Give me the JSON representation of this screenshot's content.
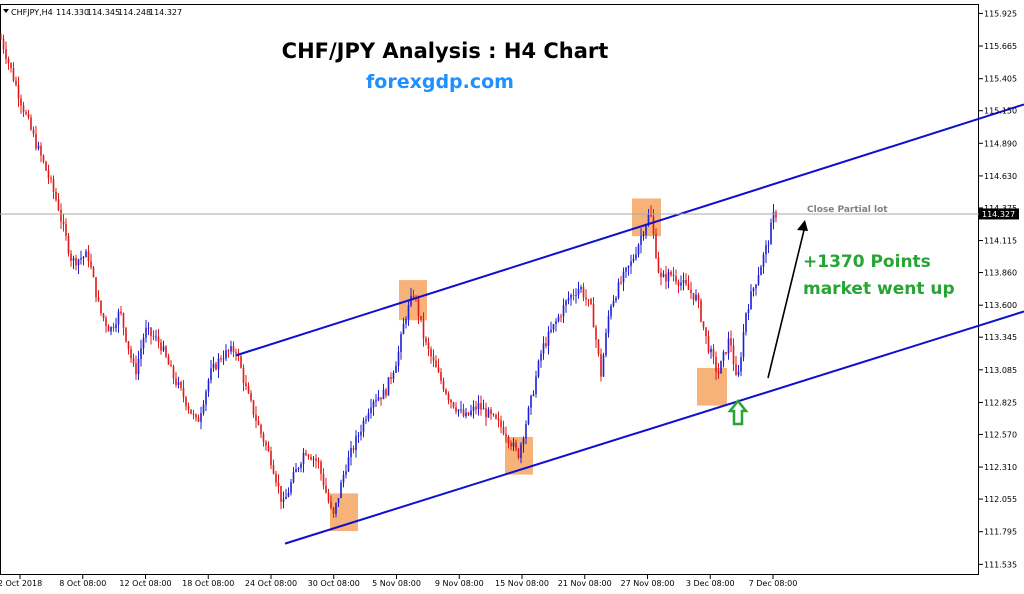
{
  "symbol_info": {
    "symbol": "CHFJPY,H4",
    "open": "114.330",
    "high": "114.345",
    "low": "114.248",
    "close": "114.327"
  },
  "current_price": "114.327",
  "chart_data": {
    "type": "candlestick",
    "title": "CHF/JPY Analysis : H4 Chart",
    "subtitle": "forexgdp.com",
    "ylim": [
      111.45,
      116.0
    ],
    "y_ticks": [
      "115.925",
      "115.665",
      "115.405",
      "115.150",
      "114.890",
      "114.630",
      "114.375",
      "114.115",
      "113.860",
      "113.600",
      "113.345",
      "113.085",
      "112.825",
      "112.570",
      "112.310",
      "112.055",
      "111.795",
      "111.535"
    ],
    "x_ticks": [
      "2 Oct 2018",
      "8 Oct 08:00",
      "12 Oct 08:00",
      "18 Oct 08:00",
      "24 Oct 08:00",
      "30 Oct 08:00",
      "5 Nov 08:00",
      "9 Nov 08:00",
      "15 Nov 08:00",
      "21 Nov 08:00",
      "27 Nov 08:00",
      "3 Dec 08:00",
      "7 Dec 08:00"
    ],
    "path_close": [
      [
        0,
        115.75
      ],
      [
        12,
        115.45
      ],
      [
        22,
        115.2
      ],
      [
        33,
        114.95
      ],
      [
        45,
        114.7
      ],
      [
        58,
        114.4
      ],
      [
        62,
        114.25
      ],
      [
        72,
        113.95
      ],
      [
        88,
        114.0
      ],
      [
        100,
        113.55
      ],
      [
        110,
        113.4
      ],
      [
        120,
        113.55
      ],
      [
        135,
        113.05
      ],
      [
        145,
        113.4
      ],
      [
        160,
        113.3
      ],
      [
        172,
        113.05
      ],
      [
        185,
        112.85
      ],
      [
        197,
        112.65
      ],
      [
        210,
        113.05
      ],
      [
        222,
        113.2
      ],
      [
        236,
        113.25
      ],
      [
        247,
        112.9
      ],
      [
        260,
        112.6
      ],
      [
        272,
        112.35
      ],
      [
        283,
        112.0
      ],
      [
        292,
        112.2
      ],
      [
        305,
        112.45
      ],
      [
        318,
        112.35
      ],
      [
        333,
        111.9
      ],
      [
        345,
        112.3
      ],
      [
        360,
        112.6
      ],
      [
        372,
        112.85
      ],
      [
        385,
        112.9
      ],
      [
        398,
        113.2
      ],
      [
        405,
        113.5
      ],
      [
        414,
        113.7
      ],
      [
        425,
        113.3
      ],
      [
        438,
        113.05
      ],
      [
        450,
        112.85
      ],
      [
        465,
        112.7
      ],
      [
        478,
        112.8
      ],
      [
        492,
        112.7
      ],
      [
        505,
        112.6
      ],
      [
        518,
        112.4
      ],
      [
        530,
        112.8
      ],
      [
        542,
        113.25
      ],
      [
        555,
        113.45
      ],
      [
        568,
        113.65
      ],
      [
        580,
        113.75
      ],
      [
        592,
        113.55
      ],
      [
        601,
        113.05
      ],
      [
        610,
        113.6
      ],
      [
        622,
        113.8
      ],
      [
        632,
        113.95
      ],
      [
        641,
        114.15
      ],
      [
        650,
        114.35
      ],
      [
        660,
        113.8
      ],
      [
        672,
        113.85
      ],
      [
        685,
        113.75
      ],
      [
        697,
        113.65
      ],
      [
        707,
        113.3
      ],
      [
        718,
        113.05
      ],
      [
        730,
        113.35
      ],
      [
        737,
        112.95
      ],
      [
        746,
        113.55
      ],
      [
        760,
        113.9
      ],
      [
        768,
        114.1
      ],
      [
        774,
        114.33
      ]
    ],
    "highlight_boxes": [
      {
        "x": [
          330,
          358
        ],
        "y": [
          111.8,
          112.1
        ]
      },
      {
        "x": [
          399,
          427
        ],
        "y": [
          113.48,
          113.8
        ]
      },
      {
        "x": [
          505,
          533
        ],
        "y": [
          112.25,
          112.55
        ]
      },
      {
        "x": [
          632,
          661
        ],
        "y": [
          114.15,
          114.45
        ]
      },
      {
        "x": [
          697,
          727
        ],
        "y": [
          112.8,
          113.1
        ]
      }
    ],
    "trendlines": [
      {
        "name": "upper channel",
        "p1": [
          236,
          113.2
        ],
        "p2": [
          1024,
          115.2
        ]
      },
      {
        "name": "lower channel",
        "p1": [
          285,
          111.7
        ],
        "p2": [
          1024,
          113.55
        ]
      }
    ],
    "annotations": {
      "points_line1": "+1370 Points",
      "points_line2": "market went up",
      "close_label": "Close Partial lot"
    }
  },
  "colors": {
    "bull": "#1f1fd1",
    "bear": "#e01818",
    "channel": "#0f0fcf",
    "highlight": "#f4a460",
    "title": "#000000",
    "subtitle": "#1e90ff",
    "points_text": "#27a534",
    "arrow_up": "#27a534",
    "price_line": "#a9a9a9",
    "close_label": "#808080"
  }
}
